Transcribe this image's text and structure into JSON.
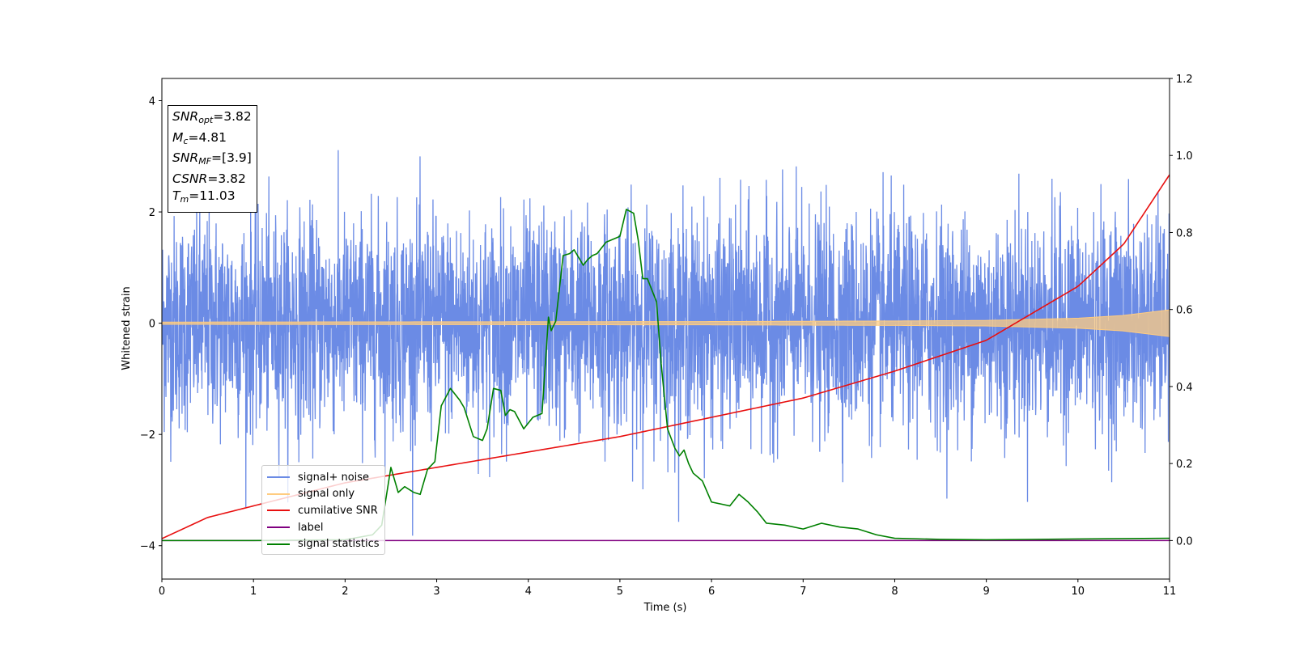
{
  "chart_data": {
    "type": "line",
    "xlabel": "Time (s)",
    "ylabel": "Whitened strain",
    "xlim": [
      0,
      11
    ],
    "ylim": [
      -4.6,
      4.4
    ],
    "y2lim": [
      -0.1,
      1.2
    ],
    "x_ticks": [
      "0",
      "1",
      "2",
      "3",
      "4",
      "5",
      "6",
      "7",
      "8",
      "9",
      "10",
      "11"
    ],
    "y_ticks": [
      "4",
      "2",
      "0",
      "−2",
      "−4"
    ],
    "y_tick_values": [
      4,
      2,
      0,
      -2,
      -4
    ],
    "y2_ticks": [
      "1.2",
      "1.0",
      "0.8",
      "0.6",
      "0.4",
      "0.2",
      "0.0"
    ],
    "y2_tick_values": [
      1.2,
      1.0,
      0.8,
      0.6,
      0.4,
      0.2,
      0.0
    ],
    "legend_position": "lower-left",
    "annotations": {
      "snr_opt": "3.82",
      "mc": "4.81",
      "snr_mf": "[3.9]",
      "csnr": "3.82",
      "tm": "11.03"
    },
    "series": [
      {
        "name": "signal+ noise",
        "color": "#6b8be5",
        "axis": "left",
        "noise_sigma": 0.95,
        "max_value": 4.03,
        "min_value": -4.16
      },
      {
        "name": "signal only",
        "color": "#ffcc80",
        "axis": "left",
        "envelope": {
          "x": [
            0,
            6,
            8,
            9,
            10,
            10.5,
            11
          ],
          "amplitude": [
            0.02,
            0.03,
            0.04,
            0.05,
            0.09,
            0.14,
            0.24
          ]
        }
      },
      {
        "name": "cumilative SNR",
        "color": "#e81010",
        "axis": "right",
        "x": [
          0,
          0.5,
          1,
          2,
          3,
          4,
          5,
          6,
          7,
          8,
          9,
          10,
          10.5,
          11
        ],
        "values": [
          0.005,
          0.06,
          0.09,
          0.15,
          0.19,
          0.23,
          0.27,
          0.32,
          0.37,
          0.44,
          0.52,
          0.66,
          0.77,
          0.95
        ]
      },
      {
        "name": "label",
        "color": "#800080",
        "axis": "right",
        "x": [
          0,
          11
        ],
        "values": [
          0.0,
          0.0
        ]
      },
      {
        "name": "signal statistics",
        "color": "#008000",
        "axis": "right",
        "x": [
          0,
          1,
          2,
          2.3,
          2.4,
          2.5,
          2.58,
          2.65,
          2.75,
          2.82,
          2.9,
          2.98,
          3.05,
          3.15,
          3.25,
          3.3,
          3.4,
          3.5,
          3.55,
          3.62,
          3.7,
          3.75,
          3.8,
          3.85,
          3.95,
          4.05,
          4.15,
          4.22,
          4.25,
          4.3,
          4.38,
          4.45,
          4.5,
          4.6,
          4.65,
          4.7,
          4.75,
          4.85,
          5.0,
          5.07,
          5.15,
          5.2,
          5.25,
          5.3,
          5.4,
          5.45,
          5.52,
          5.6,
          5.65,
          5.7,
          5.75,
          5.8,
          5.9,
          6.0,
          6.1,
          6.2,
          6.3,
          6.4,
          6.5,
          6.6,
          6.8,
          7.0,
          7.2,
          7.4,
          7.6,
          7.8,
          8.0,
          8.5,
          9.0,
          10.0,
          11.0
        ],
        "values": [
          0.0,
          0.0,
          0.002,
          0.015,
          0.04,
          0.19,
          0.125,
          0.14,
          0.125,
          0.12,
          0.185,
          0.205,
          0.35,
          0.395,
          0.365,
          0.345,
          0.27,
          0.26,
          0.29,
          0.395,
          0.39,
          0.325,
          0.34,
          0.335,
          0.29,
          0.32,
          0.33,
          0.58,
          0.545,
          0.57,
          0.74,
          0.745,
          0.755,
          0.715,
          0.73,
          0.74,
          0.745,
          0.775,
          0.79,
          0.86,
          0.85,
          0.78,
          0.68,
          0.68,
          0.62,
          0.46,
          0.29,
          0.24,
          0.22,
          0.235,
          0.2,
          0.175,
          0.155,
          0.1,
          0.095,
          0.09,
          0.12,
          0.1,
          0.075,
          0.045,
          0.04,
          0.03,
          0.045,
          0.035,
          0.03,
          0.015,
          0.006,
          0.003,
          0.002,
          0.004,
          0.006
        ]
      }
    ]
  }
}
